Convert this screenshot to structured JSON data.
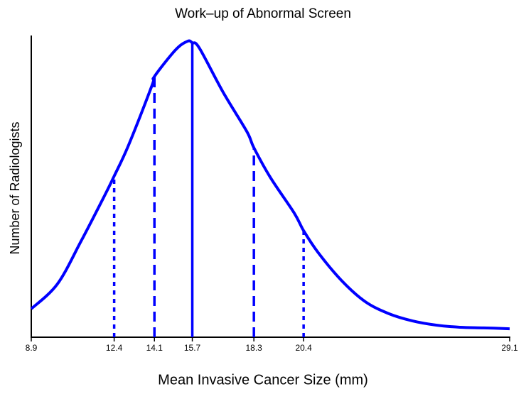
{
  "chart_data": {
    "type": "line",
    "title": "Work–up of Abnormal Screen",
    "xlabel": "Mean Invasive Cancer Size (mm)",
    "ylabel": "Number of Radiologists",
    "x": [
      8.9,
      10,
      11,
      12,
      12.4,
      13,
      14,
      14.1,
      15,
      15.5,
      15.7,
      16,
      17,
      18,
      18.3,
      19,
      20,
      20.4,
      21,
      22,
      23,
      24,
      25,
      26,
      27,
      28,
      29.1
    ],
    "series": [
      {
        "color": "#0000ff",
        "values": [
          9.4,
          17.6,
          31.8,
          47,
          53.4,
          63.5,
          83.5,
          86.4,
          95.3,
          98.1,
          97.6,
          95.8,
          81.2,
          68.2,
          62.8,
          52.9,
          41.2,
          35.3,
          28.2,
          18.8,
          11.8,
          7.8,
          5.4,
          4,
          3.3,
          3.1,
          2.8
        ]
      }
    ],
    "reference_lines": [
      {
        "x": 12.4,
        "y": 53.4,
        "style": "dotted"
      },
      {
        "x": 14.1,
        "y": 86.4,
        "style": "dashed"
      },
      {
        "x": 15.7,
        "y": 97.6,
        "style": "solid"
      },
      {
        "x": 18.3,
        "y": 62.8,
        "style": "dashed"
      },
      {
        "x": 20.4,
        "y": 35.3,
        "style": "dotted"
      }
    ],
    "xlim": [
      8.9,
      29.1
    ],
    "xticks": [
      8.9,
      12.4,
      14.1,
      15.7,
      18.3,
      20.4,
      29.1
    ],
    "ylim": [
      0,
      100
    ],
    "yticks": []
  }
}
